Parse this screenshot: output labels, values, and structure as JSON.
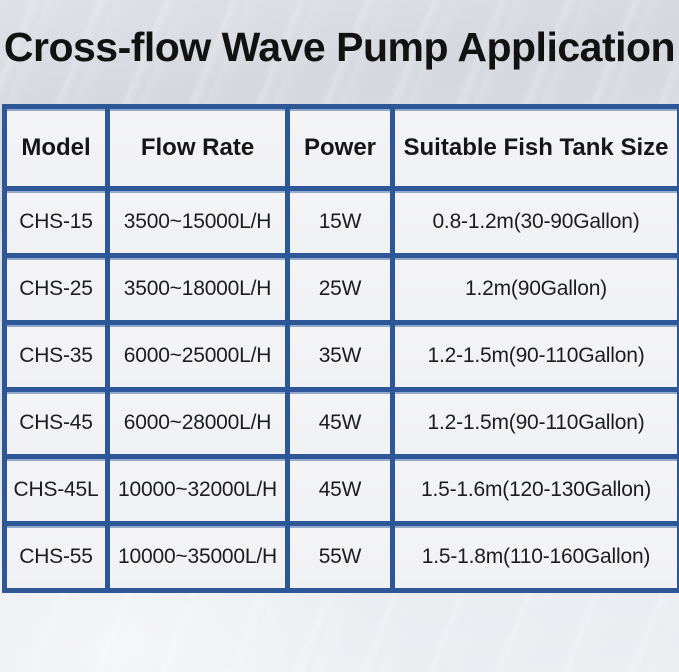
{
  "title": "Cross-flow Wave Pump Application",
  "colors": {
    "border_blue": "#2d5796",
    "border_highlight": "#93aacd",
    "cell_background": "#f2f2f5",
    "background_top": "#d6d8e0",
    "background_bottom": "#eceef2",
    "title_color": "#121212",
    "cell_text_color": "#1d1d1f"
  },
  "table": {
    "columns": [
      "Model",
      "Flow Rate",
      "Power",
      "Suitable Fish Tank Size"
    ],
    "rows": [
      [
        "CHS-15",
        "3500~15000L/H",
        "15W",
        "0.8-1.2m(30-90Gallon)"
      ],
      [
        "CHS-25",
        "3500~18000L/H",
        "25W",
        "1.2m(90Gallon)"
      ],
      [
        "CHS-35",
        "6000~25000L/H",
        "35W",
        "1.2-1.5m(90-110Gallon)"
      ],
      [
        "CHS-45",
        "6000~28000L/H",
        "45W",
        "1.2-1.5m(90-110Gallon)"
      ],
      [
        "CHS-45L",
        "10000~32000L/H",
        "45W",
        "1.5-1.6m(120-130Gallon)"
      ],
      [
        "CHS-55",
        "10000~35000L/H",
        "55W",
        "1.5-1.8m(110-160Gallon)"
      ]
    ]
  },
  "chart_data": {
    "type": "table",
    "title": "Cross-flow Wave Pump Application",
    "columns": [
      "Model",
      "Flow Rate",
      "Power",
      "Suitable Fish Tank Size"
    ],
    "rows": [
      [
        "CHS-15",
        "3500~15000L/H",
        "15W",
        "0.8-1.2m(30-90Gallon)"
      ],
      [
        "CHS-25",
        "3500~18000L/H",
        "25W",
        "1.2m(90Gallon)"
      ],
      [
        "CHS-35",
        "6000~25000L/H",
        "35W",
        "1.2-1.5m(90-110Gallon)"
      ],
      [
        "CHS-45",
        "6000~28000L/H",
        "45W",
        "1.2-1.5m(90-110Gallon)"
      ],
      [
        "CHS-45L",
        "10000~32000L/H",
        "45W",
        "1.5-1.6m(120-130Gallon)"
      ],
      [
        "CHS-55",
        "10000~35000L/H",
        "55W",
        "1.5-1.8m(110-160Gallon)"
      ]
    ]
  }
}
